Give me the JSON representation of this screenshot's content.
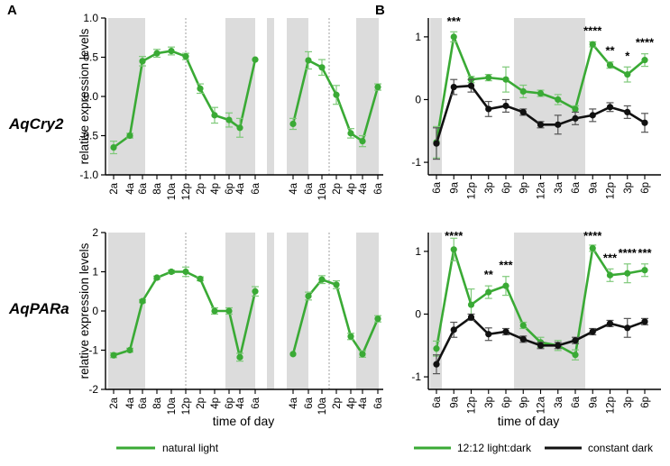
{
  "panel_a_letter": "A",
  "panel_b_letter": "B",
  "colors": {
    "green": "#3aaa35",
    "black": "#111111",
    "shade": "#dcdcdc",
    "error_green": "#7fc97a",
    "error_black": "#555555"
  },
  "legend": {
    "natural": "natural light",
    "ld": "12:12 light:dark",
    "dd": "constant dark"
  },
  "chart_data": [
    {
      "id": "A1",
      "type": "line",
      "panel": "A",
      "gene": "AqCry2",
      "ylabel": "relative expression levels",
      "xlabel": "",
      "ylim": [
        -1.0,
        1.0
      ],
      "yticks": [
        "1.0",
        "0.5",
        "0.0",
        "-0.5",
        "-1.0"
      ],
      "ytick_values": [
        1.0,
        0.5,
        0.0,
        -0.5,
        -1.0
      ],
      "xticks": [
        "2a",
        "4a",
        "6a",
        "8a",
        "10a",
        "12p",
        "2p",
        "4p",
        "6p",
        "4a",
        "6a",
        "4a",
        "6a",
        "10a",
        "2p",
        "4p",
        "4a",
        "6a"
      ],
      "series": [
        {
          "name": "natural light",
          "segment": 1,
          "x": [
            0,
            1,
            2,
            3,
            4,
            5,
            6,
            7,
            8,
            9,
            10
          ],
          "values": [
            -0.65,
            -0.5,
            0.45,
            0.55,
            0.58,
            0.51,
            0.1,
            -0.24,
            -0.3,
            -0.4,
            0.47
          ],
          "err": [
            0.08,
            0.03,
            0.06,
            0.05,
            0.05,
            0.04,
            0.06,
            0.1,
            0.09,
            0.12,
            0.0
          ]
        },
        {
          "name": "natural light",
          "segment": 2,
          "x": [
            11,
            12,
            13,
            14,
            15,
            16,
            17
          ],
          "values": [
            -0.35,
            0.46,
            0.37,
            0.02,
            -0.47,
            -0.57,
            0.12
          ],
          "err": [
            0.07,
            0.11,
            0.1,
            0.12,
            0.06,
            0.07,
            0.04
          ]
        }
      ]
    },
    {
      "id": "A2",
      "type": "line",
      "panel": "A",
      "gene": "AqPARa",
      "ylabel": "relative expression levels",
      "xlabel": "time of day",
      "ylim": [
        -2,
        2
      ],
      "yticks": [
        "2",
        "1",
        "0",
        "-1",
        "-2"
      ],
      "ytick_values": [
        2,
        1,
        0,
        -1,
        -2
      ],
      "xticks": [
        "2a",
        "4a",
        "6a",
        "8a",
        "10a",
        "12p",
        "2p",
        "4p",
        "6p",
        "4a",
        "6a",
        "4a",
        "6a",
        "10a",
        "2p",
        "4p",
        "4a",
        "6a"
      ],
      "series": [
        {
          "name": "natural light",
          "segment": 1,
          "x": [
            0,
            1,
            2,
            3,
            4,
            5,
            6,
            7,
            8,
            9,
            10
          ],
          "values": [
            -1.13,
            -1.0,
            0.25,
            0.85,
            1.0,
            1.0,
            0.82,
            0.0,
            0.0,
            -1.18,
            0.5
          ],
          "err": [
            0.06,
            0.05,
            0.04,
            0.04,
            0.04,
            0.12,
            0.05,
            0.08,
            0.08,
            0.1,
            0.12
          ]
        },
        {
          "name": "natural light",
          "segment": 2,
          "x": [
            11,
            12,
            13,
            14,
            15,
            16,
            17
          ],
          "values": [
            -1.1,
            0.38,
            0.8,
            0.67,
            -0.65,
            -1.1,
            -0.2
          ],
          "err": [
            0.0,
            0.1,
            0.1,
            0.1,
            0.08,
            0.08,
            0.08
          ]
        }
      ]
    },
    {
      "id": "B1",
      "type": "line",
      "panel": "B",
      "gene": "AqCry2",
      "ylabel": "",
      "xlabel": "",
      "ylim": [
        -1.2,
        1.3
      ],
      "yticks": [
        "1",
        "0",
        "-1"
      ],
      "ytick_values": [
        1,
        0,
        -1
      ],
      "xticks": [
        "6a",
        "9a",
        "12p",
        "3p",
        "6p",
        "9p",
        "12a",
        "3a",
        "6a",
        "9a",
        "12p",
        "3p",
        "6p"
      ],
      "significance": [
        {
          "at": 1,
          "label": "***"
        },
        {
          "at": 9,
          "label": "****"
        },
        {
          "at": 10,
          "label": "**"
        },
        {
          "at": 11,
          "label": "*"
        },
        {
          "at": 12,
          "label": "****"
        }
      ],
      "series": [
        {
          "name": "12:12 light:dark",
          "values": [
            -0.68,
            1.0,
            0.32,
            0.35,
            0.32,
            0.13,
            0.1,
            0.0,
            -0.15,
            0.88,
            0.55,
            0.4,
            0.63
          ],
          "err": [
            0.25,
            0.08,
            0.05,
            0.05,
            0.2,
            0.1,
            0.05,
            0.08,
            0.05,
            0.04,
            0.05,
            0.12,
            0.1
          ]
        },
        {
          "name": "constant dark",
          "values": [
            -0.7,
            0.2,
            0.22,
            -0.15,
            -0.1,
            -0.2,
            -0.4,
            -0.4,
            -0.3,
            -0.25,
            -0.12,
            -0.2,
            -0.37
          ],
          "err": [
            0.25,
            0.12,
            0.1,
            0.12,
            0.1,
            0.05,
            0.05,
            0.15,
            0.1,
            0.1,
            0.07,
            0.1,
            0.15
          ]
        }
      ]
    },
    {
      "id": "B2",
      "type": "line",
      "panel": "B",
      "gene": "AqPARa",
      "ylabel": "",
      "xlabel": "time of day",
      "ylim": [
        -1.2,
        1.3
      ],
      "yticks": [
        "1",
        "0",
        "-1"
      ],
      "ytick_values": [
        1,
        0,
        -1
      ],
      "xticks": [
        "6a",
        "9a",
        "12p",
        "3p",
        "6p",
        "9p",
        "12a",
        "3a",
        "6a",
        "9a",
        "12p",
        "3p",
        "6p"
      ],
      "significance": [
        {
          "at": 1,
          "label": "****"
        },
        {
          "at": 3,
          "label": "**"
        },
        {
          "at": 4,
          "label": "***"
        },
        {
          "at": 9,
          "label": "****"
        },
        {
          "at": 10,
          "label": "***"
        },
        {
          "at": 11,
          "label": "****"
        },
        {
          "at": 12,
          "label": "***"
        }
      ],
      "series": [
        {
          "name": "12:12 light:dark",
          "values": [
            -0.55,
            1.03,
            0.15,
            0.35,
            0.45,
            -0.18,
            -0.45,
            -0.5,
            -0.65,
            1.05,
            0.62,
            0.65,
            0.7
          ],
          "err": [
            0.12,
            0.18,
            0.25,
            0.1,
            0.15,
            0.05,
            0.08,
            0.08,
            0.08,
            0.05,
            0.1,
            0.15,
            0.1
          ]
        },
        {
          "name": "constant dark",
          "values": [
            -0.8,
            -0.25,
            -0.05,
            -0.32,
            -0.28,
            -0.4,
            -0.5,
            -0.5,
            -0.42,
            -0.28,
            -0.15,
            -0.22,
            -0.12
          ],
          "err": [
            0.15,
            0.12,
            0.05,
            0.1,
            0.05,
            0.05,
            0.05,
            0.05,
            0.05,
            0.05,
            0.05,
            0.15,
            0.05
          ]
        }
      ]
    }
  ]
}
